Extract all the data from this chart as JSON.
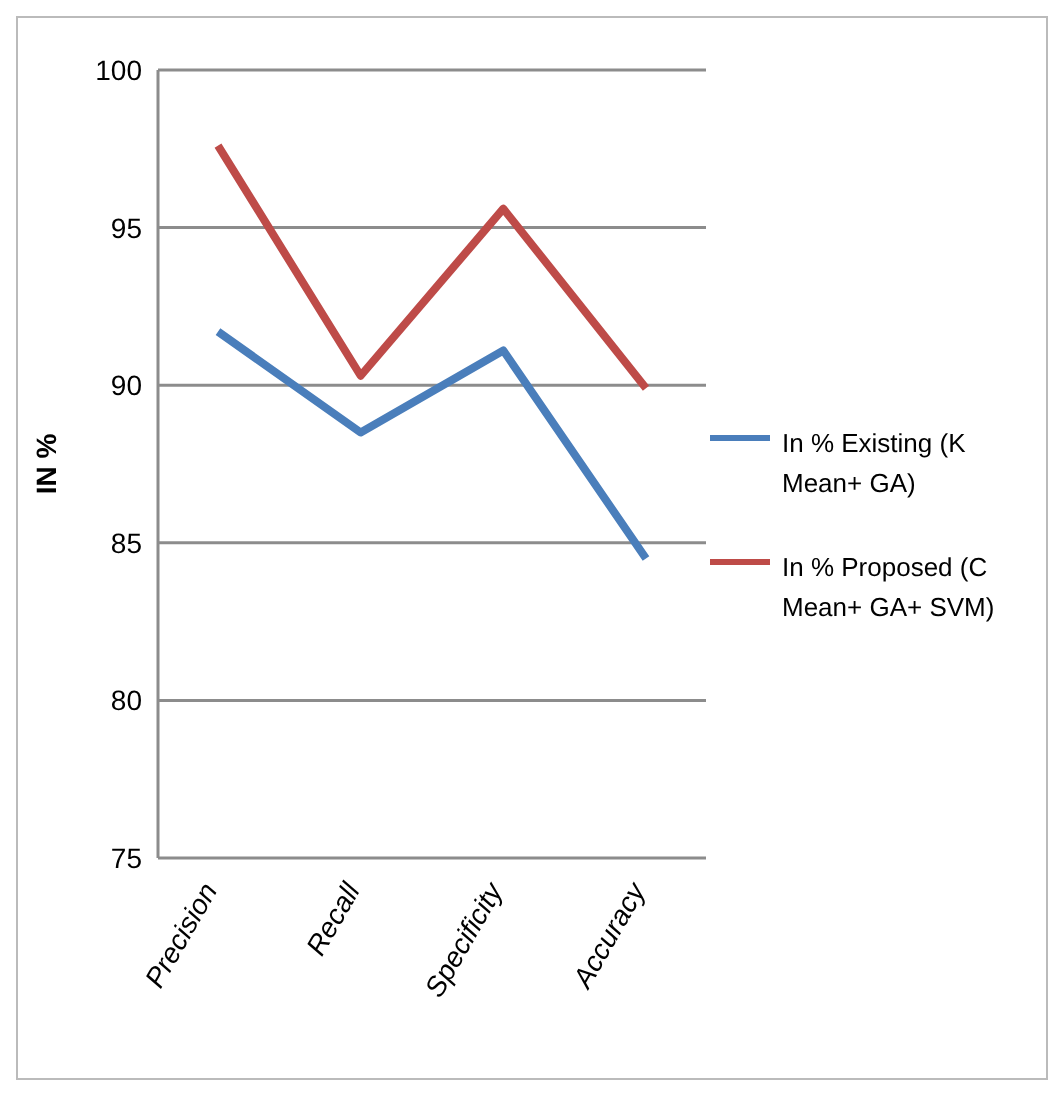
{
  "chart_data": {
    "type": "line",
    "ylabel": "IN %",
    "categories": [
      "Precision",
      "Recall",
      "Specificity",
      "Accuracy"
    ],
    "series": [
      {
        "name": "In % Existing (K Mean+ GA)",
        "color": "#4a7ebb",
        "values": [
          91.7,
          88.5,
          91.1,
          84.5
        ]
      },
      {
        "name": "In % Proposed (C Mean+ GA+ SVM)",
        "color": "#be4b48",
        "values": [
          97.6,
          90.3,
          95.6,
          89.9
        ]
      }
    ],
    "ylim": [
      75,
      100
    ],
    "yticks": [
      75,
      80,
      85,
      90,
      95,
      100
    ],
    "grid": "y",
    "legend": "right",
    "marker": "none",
    "line_style": "solid"
  }
}
